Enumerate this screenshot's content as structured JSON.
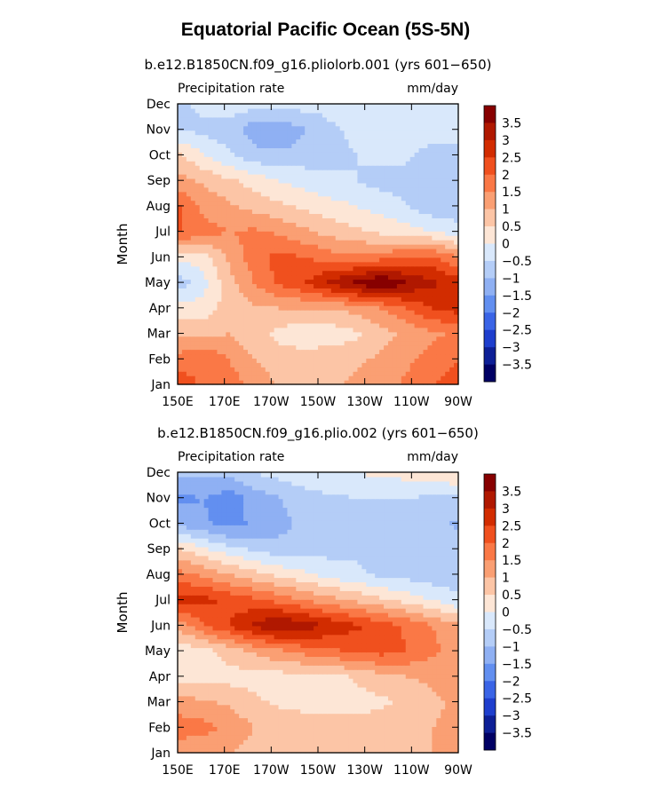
{
  "title": "Equatorial Pacific Ocean (5S-5N)",
  "chart_data": [
    {
      "type": "heatmap",
      "title": "b.e12.B1850CN.f09_g16.pliolorb.001 (yrs 601−650)",
      "left_label": "Precipitation rate",
      "units": "mm/day",
      "xlabel": "",
      "ylabel": "Month",
      "x_ticks": [
        "150E",
        "170E",
        "170W",
        "150W",
        "130W",
        "110W",
        "90W"
      ],
      "y_ticks": [
        "Jan",
        "Feb",
        "Mar",
        "Apr",
        "May",
        "Jun",
        "Jul",
        "Aug",
        "Sep",
        "Oct",
        "Nov",
        "Dec"
      ],
      "colorbar_levels": [
        "3.5",
        "3",
        "2.5",
        "2",
        "1.5",
        "1",
        "0.5",
        "0",
        "−0.5",
        "−1",
        "−1.5",
        "−2",
        "−2.5",
        "−3",
        "−3.5"
      ],
      "colorbar_colors": [
        "#870000",
        "#b01800",
        "#d22c00",
        "#f0501e",
        "#fa7846",
        "#fa9f73",
        "#fcc5a6",
        "#fde6d6",
        "#d9e8fb",
        "#b4cdf7",
        "#8fb0f3",
        "#628ff0",
        "#3a64e6",
        "#1e3ecd",
        "#0d1f96",
        "#000064"
      ],
      "grid": false,
      "z": [
        [
          1.8,
          1.4,
          1.3,
          0.8,
          0.4,
          0.2,
          0.4,
          0.6,
          0.8,
          1.1,
          1.5,
          1.7
        ],
        [
          1.2,
          1.5,
          1.0,
          0.5,
          0.3,
          0.2,
          0.3,
          0.4,
          0.6,
          0.9,
          1.2,
          1.5
        ],
        [
          0.4,
          0.4,
          0.5,
          0.2,
          -0.2,
          -0.3,
          -0.3,
          -0.1,
          0.3,
          0.6,
          0.9,
          1.1
        ],
        [
          -0.3,
          -0.3,
          0.2,
          0.4,
          0.5,
          0.5,
          0.5,
          0.7,
          1.0,
          1.5,
          2.0,
          2.2
        ],
        [
          -1.3,
          -0.7,
          0.3,
          1.0,
          1.6,
          2.0,
          2.6,
          3.2,
          3.6,
          3.0,
          2.6,
          2.3
        ],
        [
          -0.4,
          -0.2,
          0.6,
          1.3,
          1.7,
          1.5,
          1.2,
          1.1,
          1.3,
          1.5,
          1.6,
          1.0
        ],
        [
          1.6,
          1.2,
          1.0,
          1.1,
          0.9,
          0.6,
          0.3,
          0.1,
          -0.1,
          -0.3,
          -0.5,
          -0.8
        ],
        [
          1.6,
          0.9,
          0.6,
          0.3,
          0.1,
          -0.1,
          -0.3,
          -0.5,
          -0.7,
          -1.0,
          -1.3,
          -1.3
        ],
        [
          0.7,
          0.4,
          0.1,
          -0.2,
          -0.5,
          -0.7,
          -0.9,
          -1.0,
          -1.2,
          -1.2,
          -1.4,
          -1.3
        ],
        [
          0.2,
          -0.5,
          -0.9,
          -1.3,
          -1.4,
          -1.3,
          -1.1,
          -1.0,
          -0.9,
          -0.9,
          -1.2,
          -1.1
        ],
        [
          -1.1,
          -1.1,
          -1.3,
          -1.8,
          -1.9,
          -1.5,
          -1.1,
          -0.9,
          -0.8,
          -0.8,
          -0.8,
          -0.9
        ],
        [
          -1.1,
          -0.9,
          -0.6,
          -0.8,
          -0.9,
          -0.8,
          -0.8,
          -0.8,
          -0.8,
          -0.8,
          -0.8,
          -0.8
        ]
      ]
    },
    {
      "type": "heatmap",
      "title": "b.e12.B1850CN.f09_g16.plio.002 (yrs 601−650)",
      "left_label": "Precipitation rate",
      "units": "mm/day",
      "xlabel": "",
      "ylabel": "Month",
      "x_ticks": [
        "150E",
        "170E",
        "170W",
        "150W",
        "130W",
        "110W",
        "90W"
      ],
      "y_ticks": [
        "Jan",
        "Feb",
        "Mar",
        "Apr",
        "May",
        "Jun",
        "Jul",
        "Aug",
        "Sep",
        "Oct",
        "Nov",
        "Dec"
      ],
      "colorbar_levels": [
        "3.5",
        "3",
        "2.5",
        "2",
        "1.5",
        "1",
        "0.5",
        "0",
        "−0.5",
        "−1",
        "−1.5",
        "−2",
        "−2.5",
        "−3",
        "−3.5"
      ],
      "colorbar_colors": [
        "#870000",
        "#b01800",
        "#d22c00",
        "#f0501e",
        "#fa7846",
        "#fa9f73",
        "#fcc5a6",
        "#fde6d6",
        "#d9e8fb",
        "#b4cdf7",
        "#8fb0f3",
        "#628ff0",
        "#3a64e6",
        "#1e3ecd",
        "#0d1f96",
        "#000064"
      ],
      "grid": false,
      "z": [
        [
          0.6,
          0.6,
          0.5,
          0.3,
          0.3,
          0.2,
          0.2,
          0.2,
          0.3,
          0.4,
          0.5,
          0.7
        ],
        [
          1.3,
          1.2,
          0.9,
          0.5,
          0.4,
          0.3,
          0.2,
          0.2,
          0.3,
          0.4,
          0.5,
          0.6
        ],
        [
          0.7,
          0.6,
          0.4,
          0.1,
          -0.1,
          -0.2,
          -0.2,
          -0.2,
          -0.1,
          0.1,
          0.4,
          0.6
        ],
        [
          -0.2,
          -0.3,
          -0.2,
          -0.2,
          -0.2,
          -0.2,
          -0.2,
          0.1,
          0.3,
          0.5,
          0.6,
          0.8
        ],
        [
          -0.3,
          -0.2,
          0.2,
          0.6,
          0.9,
          1.2,
          1.4,
          1.6,
          1.7,
          1.5,
          1.1,
          0.8
        ],
        [
          0.6,
          1.4,
          2.0,
          2.6,
          3.1,
          2.8,
          2.4,
          2.1,
          1.8,
          1.4,
          1.0,
          0.6
        ],
        [
          2.3,
          2.2,
          1.9,
          1.6,
          1.3,
          1.0,
          0.7,
          0.4,
          0.1,
          -0.2,
          -0.5,
          -0.9
        ],
        [
          1.2,
          0.9,
          0.5,
          0.2,
          -0.1,
          -0.4,
          -0.7,
          -0.9,
          -1.1,
          -1.2,
          -1.3,
          -1.3
        ],
        [
          0.1,
          -0.4,
          -0.8,
          -1.1,
          -1.3,
          -1.2,
          -1.2,
          -1.1,
          -1.1,
          -1.2,
          -1.3,
          -1.3
        ],
        [
          -1.7,
          -1.9,
          -2.2,
          -1.9,
          -1.7,
          -1.3,
          -1.2,
          -1.1,
          -1.1,
          -1.1,
          -1.3,
          -1.6
        ],
        [
          -2.1,
          -2.0,
          -2.3,
          -1.8,
          -1.5,
          -1.2,
          -1.1,
          -1.0,
          -1.0,
          -1.0,
          -1.1,
          -1.2
        ],
        [
          -1.4,
          -1.4,
          -1.3,
          -1.0,
          -0.8,
          -0.7,
          -0.5,
          -0.5,
          -0.4,
          -0.3,
          -0.2,
          0.1
        ]
      ]
    }
  ]
}
